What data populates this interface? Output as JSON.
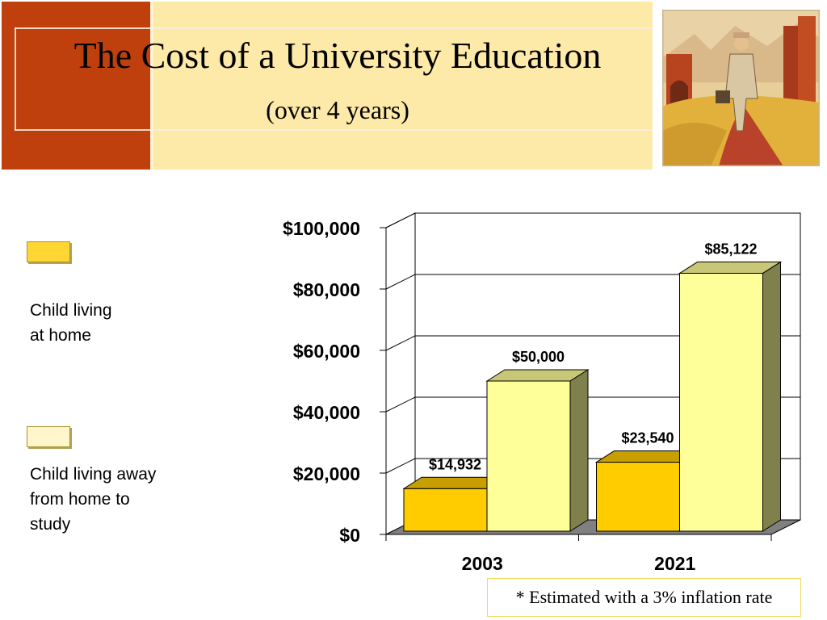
{
  "slide": {
    "title": "The Cost of a University Education",
    "subtitle": "(over 4 years)",
    "footnote": "* Estimated with a 3% inflation rate"
  },
  "colors": {
    "header_red": "#c0400d",
    "header_cream": "#fde9a8",
    "bar_at_home": "#ffcc00",
    "bar_away": "#ffff99",
    "wall_gray": "#808080"
  },
  "chart_data": {
    "type": "bar",
    "style": "3d-clustered",
    "categories": [
      "2003",
      "2021"
    ],
    "series": [
      {
        "name": "Child living\nat home",
        "values": [
          14932,
          23540
        ],
        "labels": [
          "$14,932",
          "$23,540"
        ],
        "color": "#ffcc00"
      },
      {
        "name": "Child living away\nfrom home to\nstudy",
        "values": [
          50000,
          85122
        ],
        "labels": [
          "$50,000",
          "$85,122"
        ],
        "color": "#ffff99"
      }
    ],
    "yticks": [
      "$0",
      "$20,000",
      "$40,000",
      "$60,000",
      "$80,000",
      "$100,000"
    ],
    "ylim": [
      0,
      100000
    ],
    "grid": true,
    "legend": "left"
  }
}
